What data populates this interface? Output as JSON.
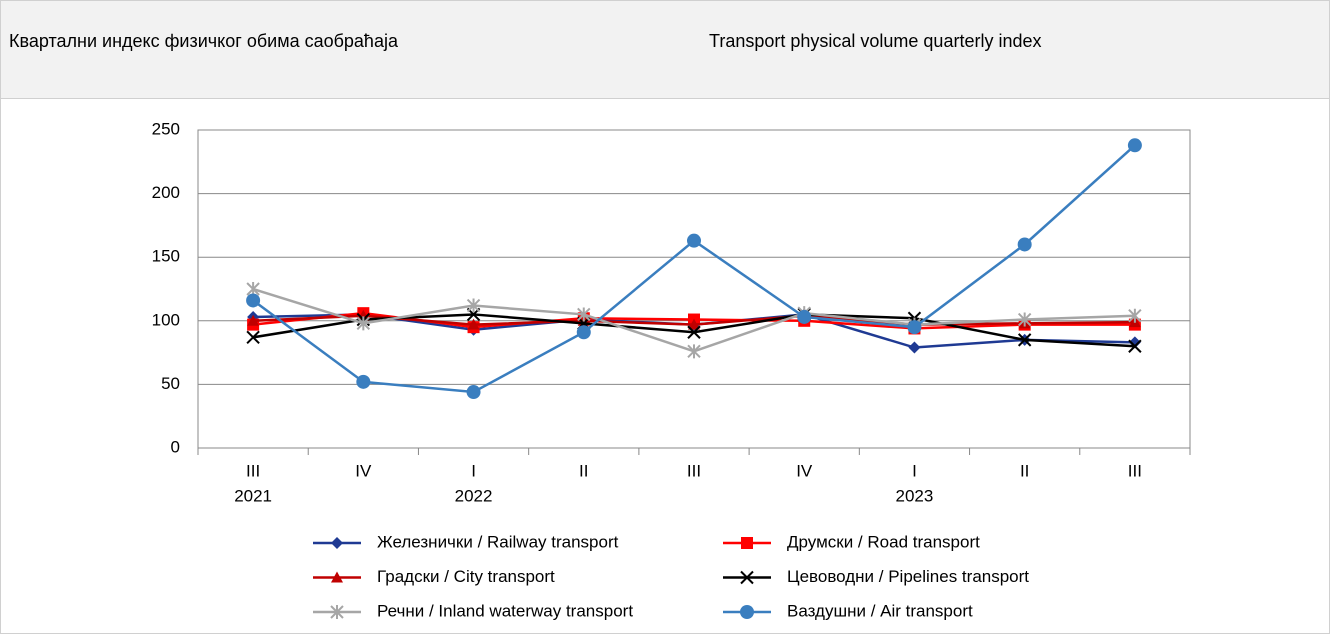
{
  "header": {
    "title": "Квартални индекс физичког обима саобраћаја",
    "title_en": "Transport physical volume quarterly index"
  },
  "chart_data": {
    "type": "line",
    "categories": [
      "III",
      "IV",
      "I",
      "II",
      "III",
      "IV",
      "I",
      "II",
      "III"
    ],
    "years": [
      "2021",
      null,
      "2022",
      null,
      null,
      null,
      "2023",
      null,
      null
    ],
    "ylim": [
      0,
      250
    ],
    "yticks": [
      0,
      50,
      100,
      150,
      200,
      250
    ],
    "grid": true,
    "series": [
      {
        "name": "Железнички / Railway transport",
        "color": "#1f3a93",
        "marker": "diamond",
        "values": [
          103,
          105,
          93,
          101,
          97,
          105,
          79,
          85,
          83
        ]
      },
      {
        "name": "Друмски / Road transport",
        "color": "#ff0000",
        "marker": "square",
        "values": [
          97,
          106,
          95,
          102,
          101,
          100,
          94,
          97,
          97
        ]
      },
      {
        "name": "Градски / City transport",
        "color": "#c00000",
        "marker": "triangle",
        "values": [
          100,
          104,
          97,
          100,
          97,
          104,
          97,
          98,
          99
        ]
      },
      {
        "name": "Цевоводни / Pipelines transport",
        "color": "#000000",
        "marker": "x",
        "values": [
          87,
          101,
          105,
          98,
          91,
          105,
          102,
          85,
          80
        ]
      },
      {
        "name": "Речни / Inland waterway transport",
        "color": "#a6a6a6",
        "marker": "asterisk",
        "values": [
          125,
          98,
          112,
          105,
          76,
          106,
          97,
          101,
          104
        ]
      },
      {
        "name": "Ваздушни / Air transport",
        "color": "#3a7ebf",
        "marker": "circle",
        "values": [
          116,
          52,
          44,
          91,
          163,
          103,
          95,
          160,
          238
        ]
      }
    ]
  }
}
